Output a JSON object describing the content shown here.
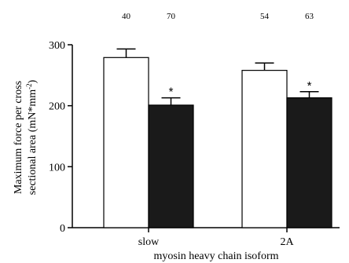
{
  "chart_data": {
    "type": "bar",
    "categories": [
      "slow",
      "2A"
    ],
    "series": [
      {
        "fill": "#ffffff",
        "values": [
          279,
          258
        ],
        "errors": [
          14,
          12
        ],
        "n": [
          "40",
          "54"
        ],
        "marker": [
          "",
          ""
        ]
      },
      {
        "fill": "#1a1a1a",
        "values": [
          201,
          213
        ],
        "errors": [
          12,
          10
        ],
        "n": [
          "70",
          "63"
        ],
        "marker": [
          "*",
          "*"
        ]
      }
    ],
    "title": "",
    "xlabel": "myosin heavy chain isoform",
    "ylabel_line1": "Maximum force per cross",
    "ylabel_line2": "sectional area (mN*mm",
    "ylabel_sup": "-2",
    "ylabel_close": ")",
    "ylim": [
      0,
      300
    ],
    "yticks": [
      "0",
      "100",
      "200",
      "300"
    ],
    "grid": false,
    "legend": "none"
  }
}
